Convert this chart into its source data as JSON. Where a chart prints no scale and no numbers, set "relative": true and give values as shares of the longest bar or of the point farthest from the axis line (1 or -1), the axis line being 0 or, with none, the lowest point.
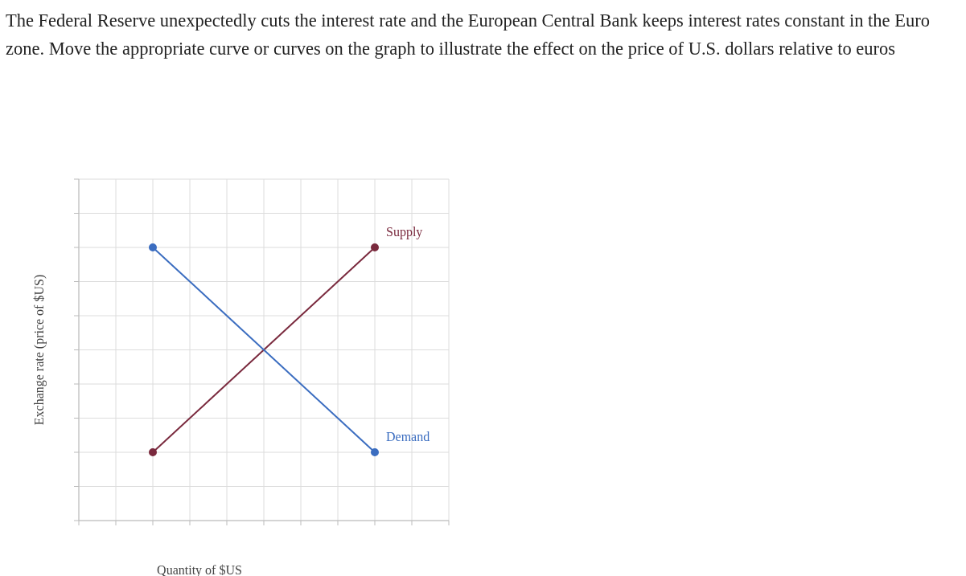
{
  "chart_data": {
    "type": "line",
    "title": "The Federal Reserve unexpectedly cuts the interest rate and the European Central Bank keeps interest rates constant in the Euro zone. Move the appropriate curve or curves on the graph to illustrate the effect on the price of U.S. dollars relative to euros",
    "xlabel": "Quantity of $US",
    "ylabel": "Exchange rate (price of $US)",
    "relative": true,
    "categories": [
      null,
      null,
      null,
      null,
      null,
      null,
      null,
      null,
      null,
      null,
      null
    ],
    "series": [
      {
        "name": "Supply",
        "color": "#7a2a3e",
        "values": [
          null,
          null,
          0.25,
          null,
          null,
          null,
          null,
          null,
          1,
          null,
          null
        ]
      },
      {
        "name": "Demand",
        "color": "#3b6dc0",
        "values": [
          null,
          null,
          1,
          null,
          null,
          null,
          null,
          null,
          0.25,
          null,
          null
        ]
      }
    ],
    "grid": true,
    "marker": "circle",
    "line_style": "solid",
    "legend": false
  }
}
